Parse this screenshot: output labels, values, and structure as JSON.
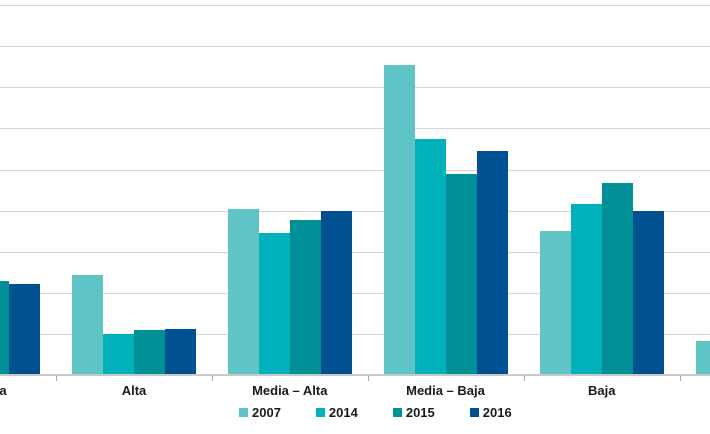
{
  "chart_data": {
    "type": "bar",
    "title": "",
    "xlabel": "",
    "ylabel": "",
    "categories": [
      {
        "key": "cropped-left",
        "label": "a"
      },
      {
        "key": "alta",
        "label": "Alta"
      },
      {
        "key": "media-alta",
        "label": "Media – Alta"
      },
      {
        "key": "media-baja",
        "label": "Media – Baja"
      },
      {
        "key": "baja",
        "label": "Baja"
      },
      {
        "key": "cropped-right",
        "label": ""
      }
    ],
    "series": [
      {
        "name": "2007",
        "color": "#5fc4c6",
        "values": [
          null,
          2.43,
          4.03,
          7.55,
          3.5,
          0.83
        ]
      },
      {
        "name": "2014",
        "color": "#00b1bb",
        "values": [
          null,
          1.0,
          3.45,
          5.75,
          4.15,
          null
        ]
      },
      {
        "name": "2015",
        "color": "#009097",
        "values": [
          2.28,
          1.09,
          3.76,
          4.9,
          4.68,
          null
        ]
      },
      {
        "name": "2016",
        "color": "#005191",
        "values": [
          2.21,
          1.13,
          4.0,
          5.44,
          3.98,
          null
        ]
      }
    ],
    "ylim": [
      0,
      9
    ],
    "gridline_interval": 1,
    "grid": true,
    "y_axis_labels_visible": false,
    "legend_position": "bottom",
    "crop_note": "chart is cropped at left, right and top edges; first and last category groups are only partially visible",
    "colors": {
      "gridline": "#d5d5d5",
      "axis": "#c9c9c9",
      "tick": "#a6a6a6",
      "label_text": "#1a1a1a",
      "background": "#ffffff"
    }
  }
}
